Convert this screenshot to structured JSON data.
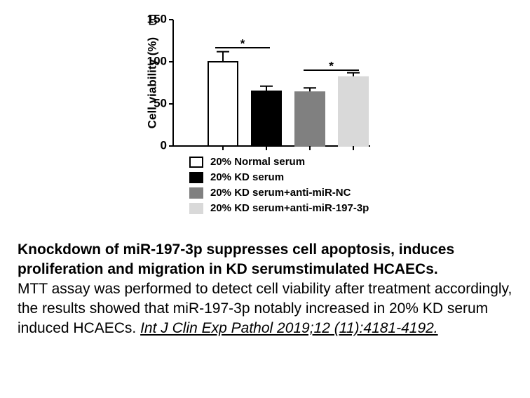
{
  "chart_data": {
    "type": "bar",
    "panel_label": "B",
    "y_label": "Cell viability (%)",
    "ylim": [
      0,
      150
    ],
    "yticks": [
      0,
      50,
      100,
      150
    ],
    "series": [
      {
        "name": "20% Normal serum",
        "color": "#ffffff",
        "values": [
          100
        ],
        "errors": [
          12
        ]
      },
      {
        "name": "20% KD serum",
        "color": "#000000",
        "values": [
          65
        ],
        "errors": [
          6
        ]
      },
      {
        "name": "20% KD serum+anti-miR-NC",
        "color": "#808080",
        "values": [
          64
        ],
        "errors": [
          5
        ]
      },
      {
        "name": "20% KD serum+anti-miR-197-3p",
        "color": "#d9d9d9",
        "values": [
          82
        ],
        "errors": [
          5
        ]
      }
    ],
    "annotations": [
      "*",
      "*"
    ]
  },
  "caption": {
    "title": "Knockdown of miR-197-3p suppresses cell apoptosis, induces proliferation and migration in KD serumstimulated HCAECs.",
    "text": "MTT assay was performed to detect cell viability after treatment accordingly, the results showed that miR-197-3p notably increased in 20% KD serum induced HCAECs.",
    "citation": "Int J Clin Exp Pathol 2019;12 (11):4181-4192."
  }
}
